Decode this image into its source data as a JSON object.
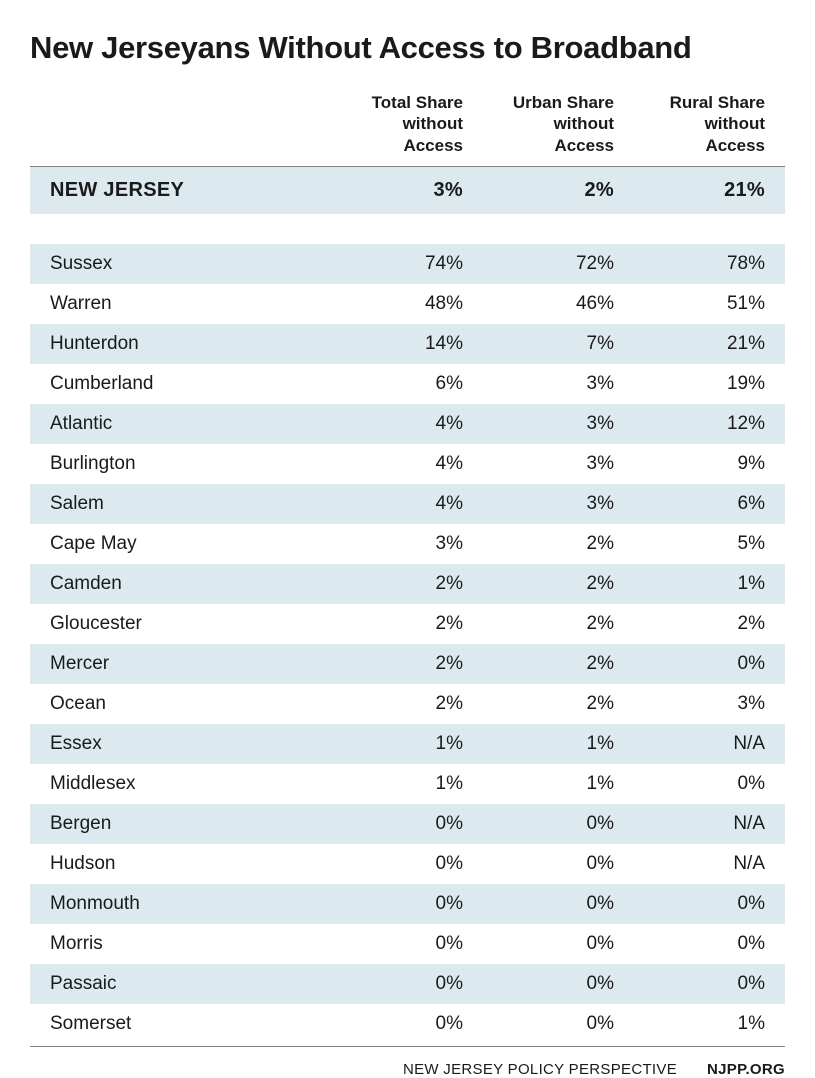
{
  "title": "New Jerseyans Without Access to Broadband",
  "columns": [
    "",
    "Total Share without Access",
    "Urban Share without Access",
    "Rural Share without Access"
  ],
  "summary": {
    "name": "NEW JERSEY",
    "total": "3%",
    "urban": "2%",
    "rural": "21%"
  },
  "rows": [
    {
      "name": "Sussex",
      "total": "74%",
      "urban": "72%",
      "rural": "78%"
    },
    {
      "name": "Warren",
      "total": "48%",
      "urban": "46%",
      "rural": "51%"
    },
    {
      "name": "Hunterdon",
      "total": "14%",
      "urban": "7%",
      "rural": "21%"
    },
    {
      "name": "Cumberland",
      "total": "6%",
      "urban": "3%",
      "rural": "19%"
    },
    {
      "name": "Atlantic",
      "total": "4%",
      "urban": "3%",
      "rural": "12%"
    },
    {
      "name": "Burlington",
      "total": "4%",
      "urban": "3%",
      "rural": "9%"
    },
    {
      "name": "Salem",
      "total": "4%",
      "urban": "3%",
      "rural": "6%"
    },
    {
      "name": "Cape May",
      "total": "3%",
      "urban": "2%",
      "rural": "5%"
    },
    {
      "name": "Camden",
      "total": "2%",
      "urban": "2%",
      "rural": "1%"
    },
    {
      "name": "Gloucester",
      "total": "2%",
      "urban": "2%",
      "rural": "2%"
    },
    {
      "name": "Mercer",
      "total": "2%",
      "urban": "2%",
      "rural": "0%"
    },
    {
      "name": "Ocean",
      "total": "2%",
      "urban": "2%",
      "rural": "3%"
    },
    {
      "name": "Essex",
      "total": "1%",
      "urban": "1%",
      "rural": "N/A"
    },
    {
      "name": "Middlesex",
      "total": "1%",
      "urban": "1%",
      "rural": "0%"
    },
    {
      "name": "Bergen",
      "total": "0%",
      "urban": "0%",
      "rural": "N/A"
    },
    {
      "name": "Hudson",
      "total": "0%",
      "urban": "0%",
      "rural": "N/A"
    },
    {
      "name": "Monmouth",
      "total": "0%",
      "urban": "0%",
      "rural": "0%"
    },
    {
      "name": "Morris",
      "total": "0%",
      "urban": "0%",
      "rural": "0%"
    },
    {
      "name": "Passaic",
      "total": "0%",
      "urban": "0%",
      "rural": "0%"
    },
    {
      "name": "Somerset",
      "total": "0%",
      "urban": "0%",
      "rural": "1%"
    }
  ],
  "footer": {
    "org": "NEW JERSEY POLICY PERSPECTIVE",
    "site": "NJPP.ORG"
  },
  "style": {
    "type": "table",
    "background_color": "#ffffff",
    "stripe_color": "#dceaf0",
    "text_color": "#1a1a1a",
    "rule_color": "#808080",
    "title_fontsize": 31,
    "header_fontsize": 17,
    "cell_fontsize": 19,
    "summary_fontsize": 20,
    "footer_fontsize": 15,
    "column_widths_pct": [
      40,
      20,
      20,
      20
    ],
    "column_align": [
      "left",
      "right",
      "right",
      "right"
    ]
  }
}
